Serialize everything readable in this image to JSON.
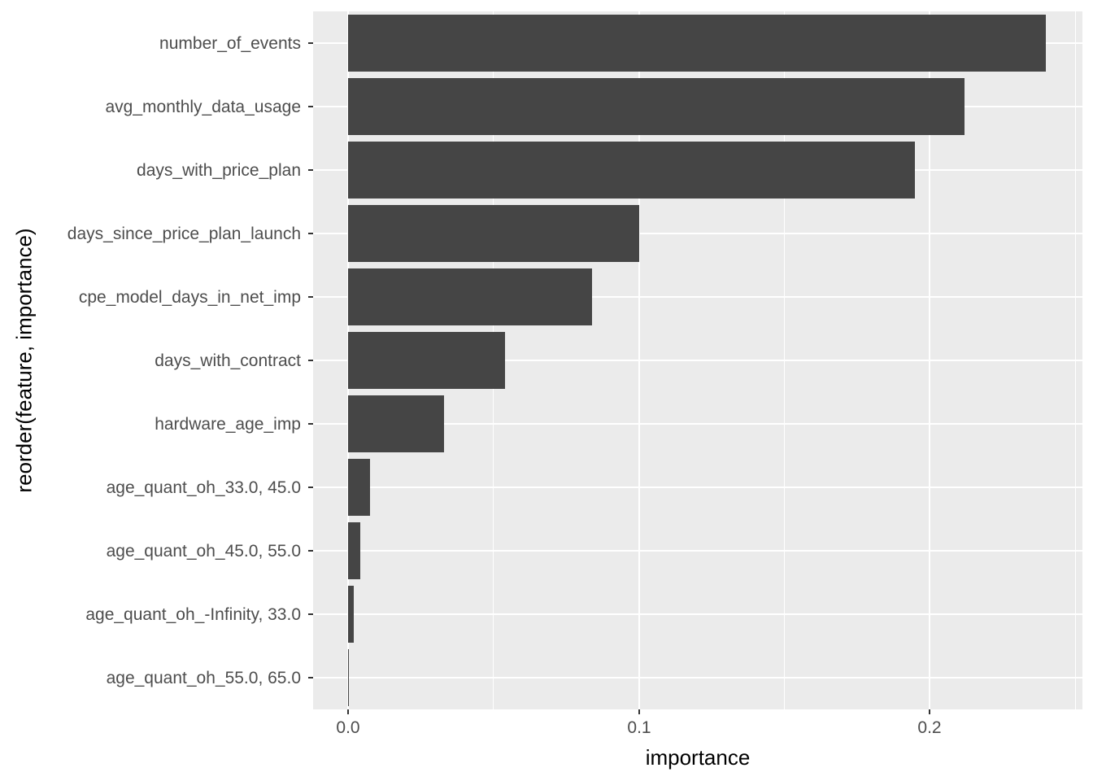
{
  "chart_data": {
    "type": "bar",
    "orientation": "horizontal",
    "title": "",
    "xlabel": "importance",
    "ylabel": "reorder(feature, importance)",
    "categories": [
      "number_of_events",
      "avg_monthly_data_usage",
      "days_with_price_plan",
      "days_since_price_plan_launch",
      "cpe_model_days_in_net_imp",
      "days_with_contract",
      "hardware_age_imp",
      "age_quant_oh_33.0, 45.0",
      "age_quant_oh_45.0, 55.0",
      "age_quant_oh_-Infinity, 33.0",
      "age_quant_oh_55.0, 65.0"
    ],
    "values": [
      0.24,
      0.212,
      0.195,
      0.1,
      0.084,
      0.054,
      0.033,
      0.0076,
      0.0042,
      0.002,
      0.0003
    ],
    "x_ticks": [
      0,
      0.1,
      0.2
    ],
    "x_tick_labels": [
      "0.0",
      "0.1",
      "0.2"
    ],
    "x_minor_ticks": [
      0.05,
      0.15,
      0.25
    ],
    "xlim": [
      -0.012,
      0.2525
    ],
    "bar_width_fraction": 0.9,
    "grid": "white major and minor gridlines on grey panel",
    "legend": "none",
    "colors": {
      "bar": "#454545",
      "panel_background": "#EBEBEB",
      "gridline": "#FFFFFF",
      "axis_text": "#4D4D4D",
      "axis_title": "#000000",
      "tick_mark": "#333333",
      "figure_background": "#FFFFFF"
    }
  }
}
